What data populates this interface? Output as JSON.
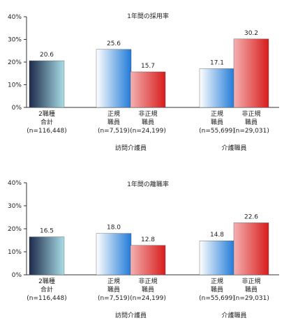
{
  "chart_data": [
    {
      "type": "bar",
      "title": "1年間の採用率",
      "yticks": [
        "0%",
        "10%",
        "20%",
        "30%",
        "40%"
      ],
      "ylim": [
        0,
        40
      ],
      "grid": false,
      "categories": [
        {
          "lines": [
            "2職種",
            "合計",
            "(n=116,448)"
          ]
        },
        {
          "lines": [
            "正規",
            "職員",
            "(n=7,519)"
          ]
        },
        {
          "lines": [
            "非正規",
            "職員",
            "(n=24,199)"
          ]
        },
        {
          "lines": [
            "正規",
            "職員",
            "(n=55,699)"
          ]
        },
        {
          "lines": [
            "非正規",
            "職員",
            "(n=29,031)"
          ]
        }
      ],
      "values": [
        20.6,
        25.6,
        15.7,
        17.1,
        30.2
      ],
      "value_labels": [
        "20.6",
        "25.6",
        "15.7",
        "17.1",
        "30.2"
      ],
      "groups": [
        {
          "label": "訪問介護員",
          "members": [
            1,
            2
          ]
        },
        {
          "label": "介護職員",
          "members": [
            3,
            4
          ]
        }
      ]
    },
    {
      "type": "bar",
      "title": "1年間の離職率",
      "yticks": [
        "0%",
        "10%",
        "20%",
        "30%",
        "40%"
      ],
      "ylim": [
        0,
        40
      ],
      "grid": false,
      "categories": [
        {
          "lines": [
            "2職種",
            "合計",
            "(n=116,448)"
          ]
        },
        {
          "lines": [
            "正規",
            "職員",
            "(n=7,519)"
          ]
        },
        {
          "lines": [
            "非正規",
            "職員",
            "(n=24,199)"
          ]
        },
        {
          "lines": [
            "正規",
            "職員",
            "(n=55,699)"
          ]
        },
        {
          "lines": [
            "非正規",
            "職員",
            "(n=29,031)"
          ]
        }
      ],
      "values": [
        16.5,
        18.0,
        12.8,
        14.8,
        22.6
      ],
      "value_labels": [
        "16.5",
        "18.0",
        "12.8",
        "14.8",
        "22.6"
      ],
      "groups": [
        {
          "label": "訪問介護員",
          "members": [
            1,
            2
          ]
        },
        {
          "label": "介護職員",
          "members": [
            3,
            4
          ]
        }
      ]
    }
  ],
  "bar_styles": [
    "total",
    "regular",
    "nonregular",
    "regular",
    "nonregular"
  ],
  "colors": {
    "total_dark": "#1c2a4a",
    "total_light": "#a9dde6",
    "regular_dark": "#1f7ad8",
    "regular_light": "#ffffff",
    "nonregular_dark": "#d81c1c",
    "nonregular_light": "#f4b0b0",
    "axis": "#333333"
  }
}
